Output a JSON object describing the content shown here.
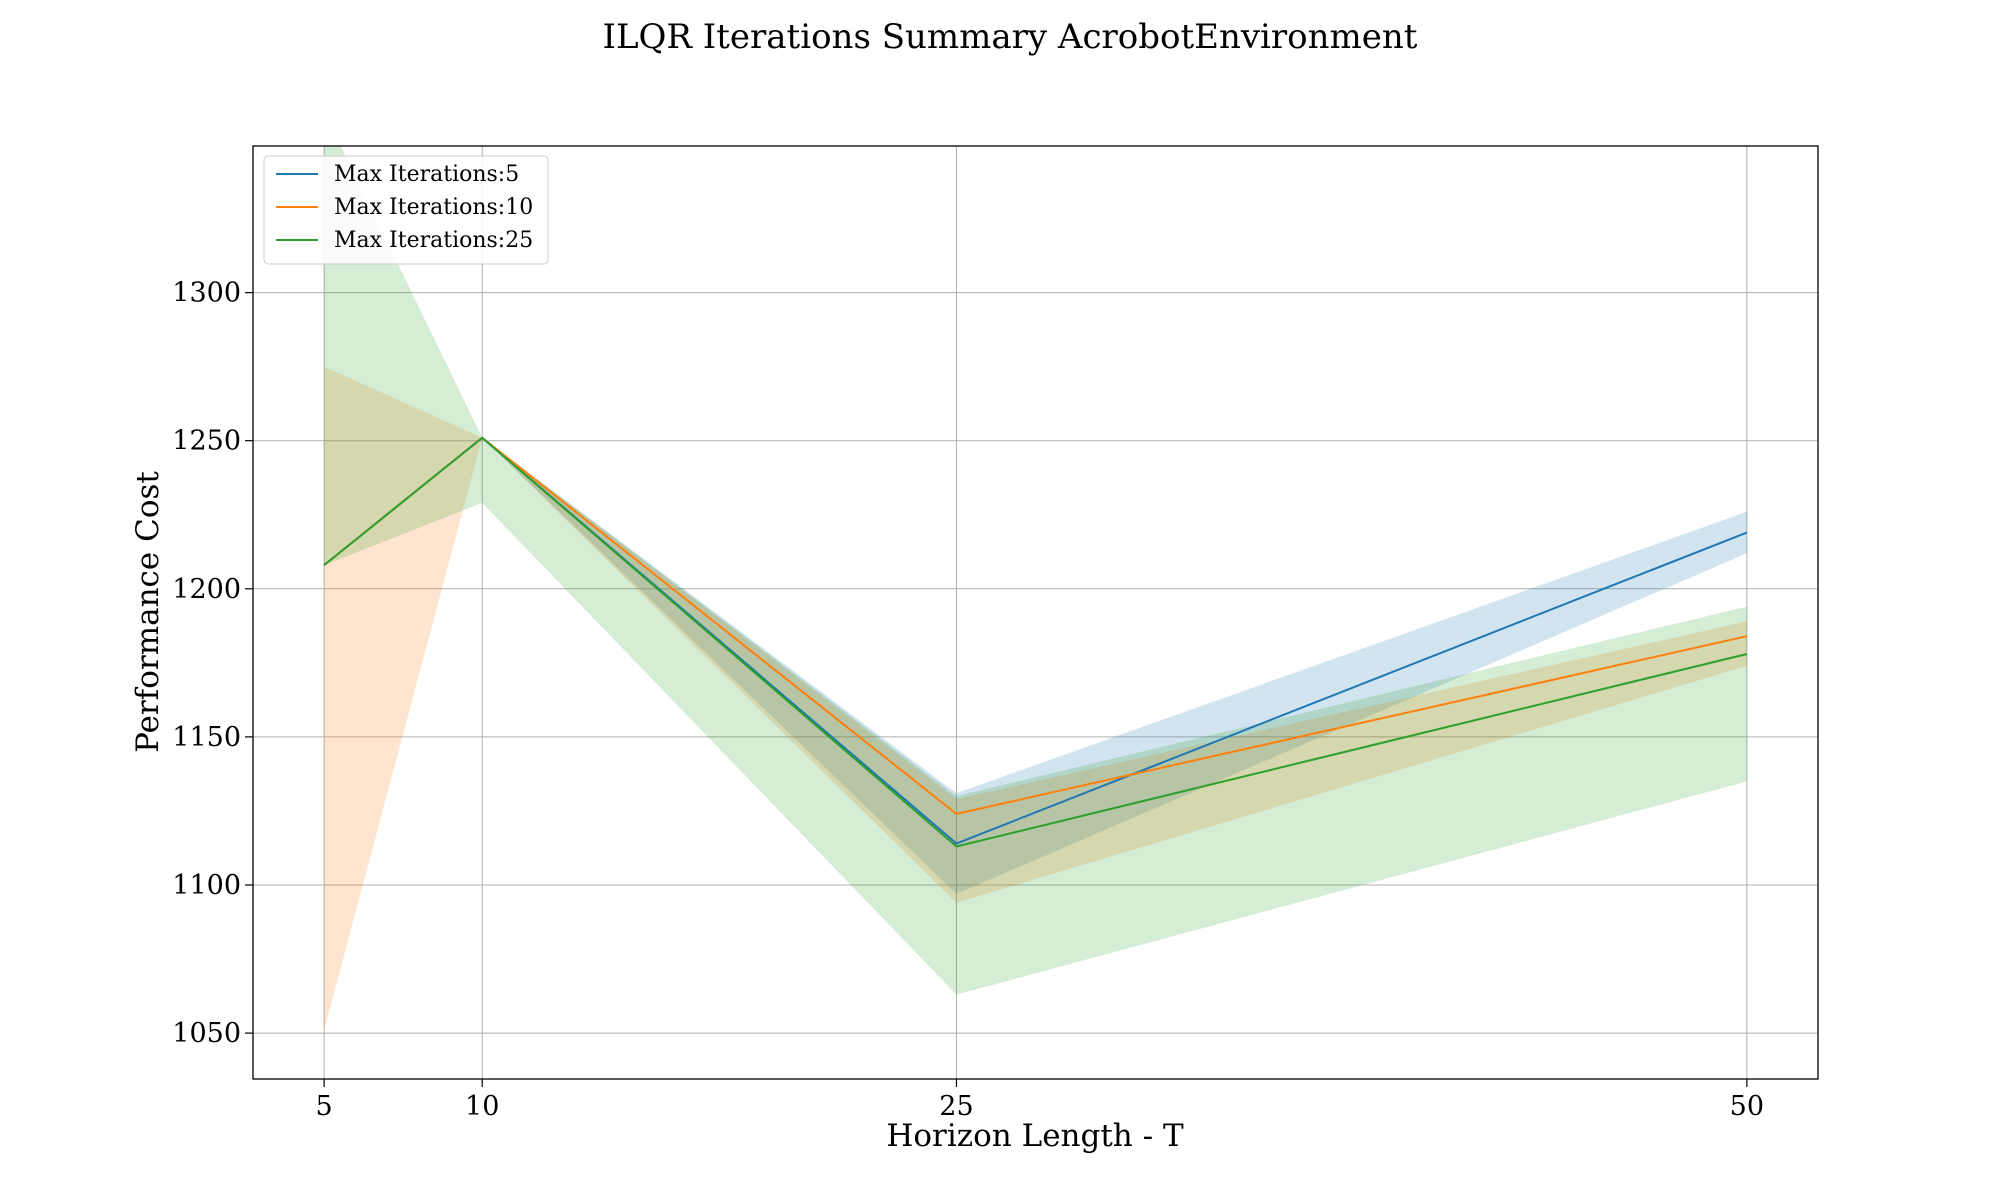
{
  "chart_data": {
    "type": "line",
    "title": "ILQR Iterations Summary AcrobotEnvironment",
    "xlabel": "Horizon Length - T",
    "ylabel": "Performance Cost",
    "x": [
      5,
      10,
      25,
      50
    ],
    "xticks": [
      "5",
      "10",
      "25",
      "50"
    ],
    "yticks": [
      "1050",
      "1100",
      "1150",
      "1200",
      "1250",
      "1300"
    ],
    "xlim": [
      2.75,
      52.25
    ],
    "ylim": [
      1034.5,
      1349.5
    ],
    "grid": true,
    "legend_position": "top-left",
    "series": [
      {
        "name": "Max Iterations:5",
        "color": "#1f77b4",
        "values": [
          1208,
          1251,
          1114,
          1219
        ],
        "lower": [
          1208,
          1251,
          1097,
          1212
        ],
        "upper": [
          1208,
          1251,
          1131,
          1226
        ]
      },
      {
        "name": "Max Iterations:10",
        "color": "#ff7f0e",
        "values": [
          1208,
          1251,
          1124,
          1184
        ],
        "lower": [
          1051,
          1251,
          1094,
          1174
        ],
        "upper": [
          1275,
          1251,
          1129,
          1189
        ]
      },
      {
        "name": "Max Iterations:25",
        "color": "#2ca02c",
        "values": [
          1208,
          1251,
          1113,
          1178
        ],
        "lower": [
          1208,
          1229,
          1063,
          1135
        ],
        "upper": [
          1361,
          1251,
          1130,
          1194
        ]
      }
    ]
  }
}
